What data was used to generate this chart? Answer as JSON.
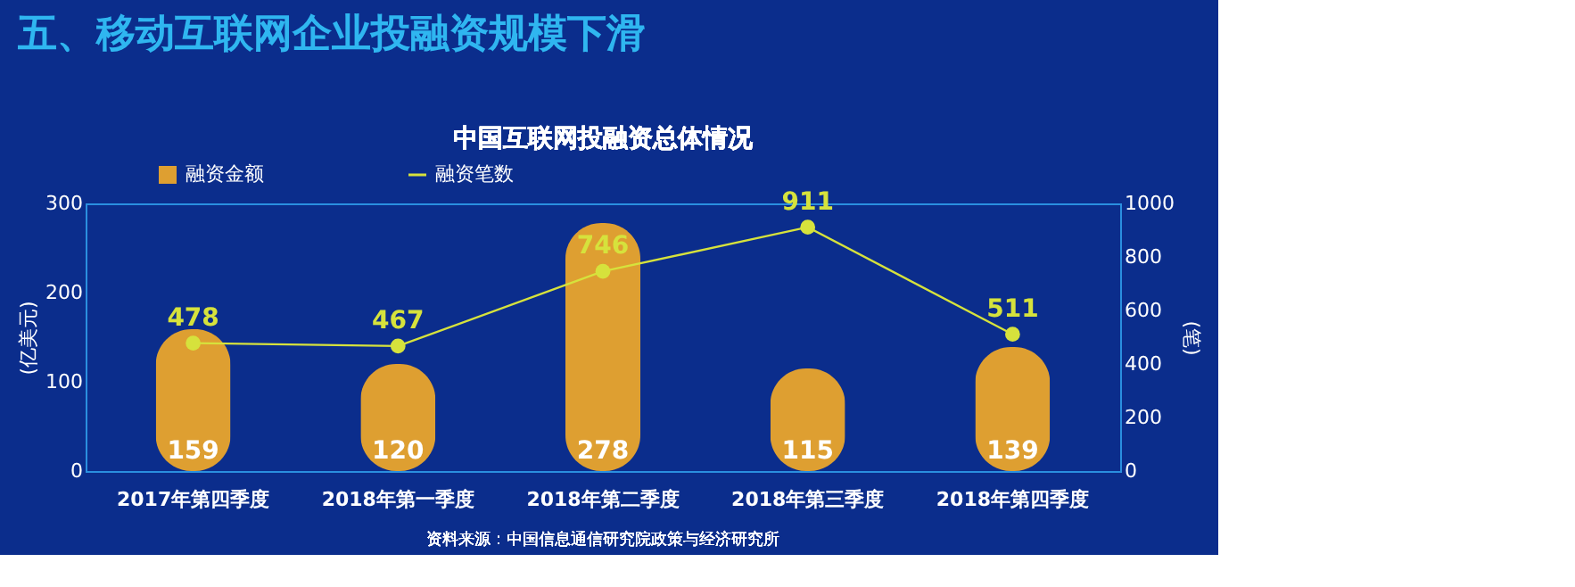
{
  "chart_data": {
    "type": "bar",
    "title": "五、移动互联网企业投融资规模下滑",
    "subtitle": "中国互联网投融资总体情况",
    "categories": [
      "2017年第四季度",
      "2018年第一季度",
      "2018年第二季度",
      "2018年第三季度",
      "2018年第四季度"
    ],
    "series": [
      {
        "name": "融资金额",
        "color": "#eaa52c",
        "values": [
          159,
          120,
          278,
          115,
          139
        ]
      },
      {
        "name": "融资笔数",
        "type": "line",
        "axis": "y2",
        "color": "#d6e23c",
        "marker": "circle",
        "values": [
          478,
          467,
          746,
          911,
          511
        ]
      }
    ],
    "ylabel": "(亿美元)",
    "y2label": "(笔)",
    "ylim": [
      0,
      300
    ],
    "yticks": [
      0,
      100,
      200,
      300
    ],
    "y2lim": [
      0,
      1000
    ],
    "y2ticks": [
      0,
      200,
      400,
      600,
      800,
      1000
    ],
    "data_labels": true,
    "grid": false,
    "legend": "top left",
    "annotations": [
      "资料来源：中国信息通信研究院政策与经济研究所"
    ]
  }
}
